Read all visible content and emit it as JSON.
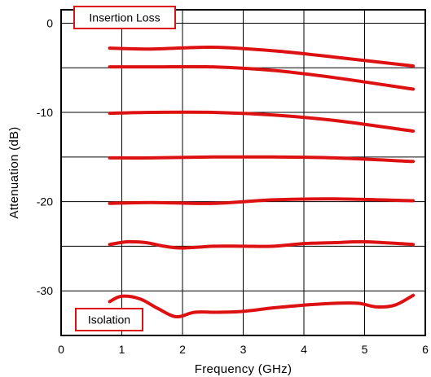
{
  "chart_data": {
    "type": "line",
    "xlabel": "Frequency (GHz)",
    "ylabel": "Attenuation (dB)",
    "xlim": [
      0,
      6
    ],
    "ylim": [
      -35,
      1.5
    ],
    "x_ticks": [
      0,
      1,
      2,
      3,
      4,
      5,
      6
    ],
    "x_tick_labels": [
      "0",
      "1",
      "2",
      "3",
      "4",
      "5",
      "6"
    ],
    "y_ticks": [
      0,
      -10,
      -20,
      -30
    ],
    "y_tick_labels": [
      "0",
      "-10",
      "-20",
      "-30"
    ],
    "grid": true,
    "line_color": "#dd1111",
    "annotations": [
      {
        "text": "Insertion Loss"
      },
      {
        "text": "Isolation"
      }
    ],
    "series": [
      {
        "x": [
          0.8,
          1.5,
          2.5,
          3.5,
          4.5,
          5.8
        ],
        "y": [
          -2.8,
          -2.9,
          -2.7,
          -3.1,
          -3.8,
          -4.8
        ]
      },
      {
        "x": [
          0.8,
          1.5,
          2.5,
          3.5,
          4.5,
          5.8
        ],
        "y": [
          -4.9,
          -4.9,
          -4.9,
          -5.3,
          -6.1,
          -7.4
        ]
      },
      {
        "x": [
          0.8,
          1.5,
          2.5,
          3.5,
          4.5,
          5.8
        ],
        "y": [
          -10.1,
          -10.0,
          -10.0,
          -10.3,
          -10.9,
          -12.1
        ]
      },
      {
        "x": [
          0.8,
          1.5,
          2.5,
          3.5,
          4.5,
          5.8
        ],
        "y": [
          -15.1,
          -15.1,
          -15.0,
          -15.0,
          -15.1,
          -15.5
        ]
      },
      {
        "x": [
          0.8,
          1.5,
          2.5,
          3.5,
          4.5,
          5.8
        ],
        "y": [
          -20.2,
          -20.1,
          -20.2,
          -19.8,
          -19.7,
          -19.9
        ]
      },
      {
        "x": [
          0.8,
          1.1,
          1.4,
          1.7,
          2.0,
          2.5,
          3.0,
          3.5,
          4.0,
          4.5,
          5.0,
          5.8
        ],
        "y": [
          -24.8,
          -24.5,
          -24.6,
          -25.0,
          -25.2,
          -25.0,
          -25.0,
          -25.0,
          -24.7,
          -24.6,
          -24.5,
          -24.8
        ]
      },
      {
        "x": [
          0.8,
          1.0,
          1.3,
          1.6,
          1.9,
          2.2,
          2.6,
          3.0,
          3.5,
          4.0,
          4.5,
          4.9,
          5.2,
          5.5,
          5.8
        ],
        "y": [
          -31.2,
          -30.6,
          -30.9,
          -32.0,
          -32.9,
          -32.4,
          -32.4,
          -32.3,
          -31.9,
          -31.6,
          -31.4,
          -31.4,
          -31.8,
          -31.6,
          -30.5
        ]
      }
    ]
  }
}
